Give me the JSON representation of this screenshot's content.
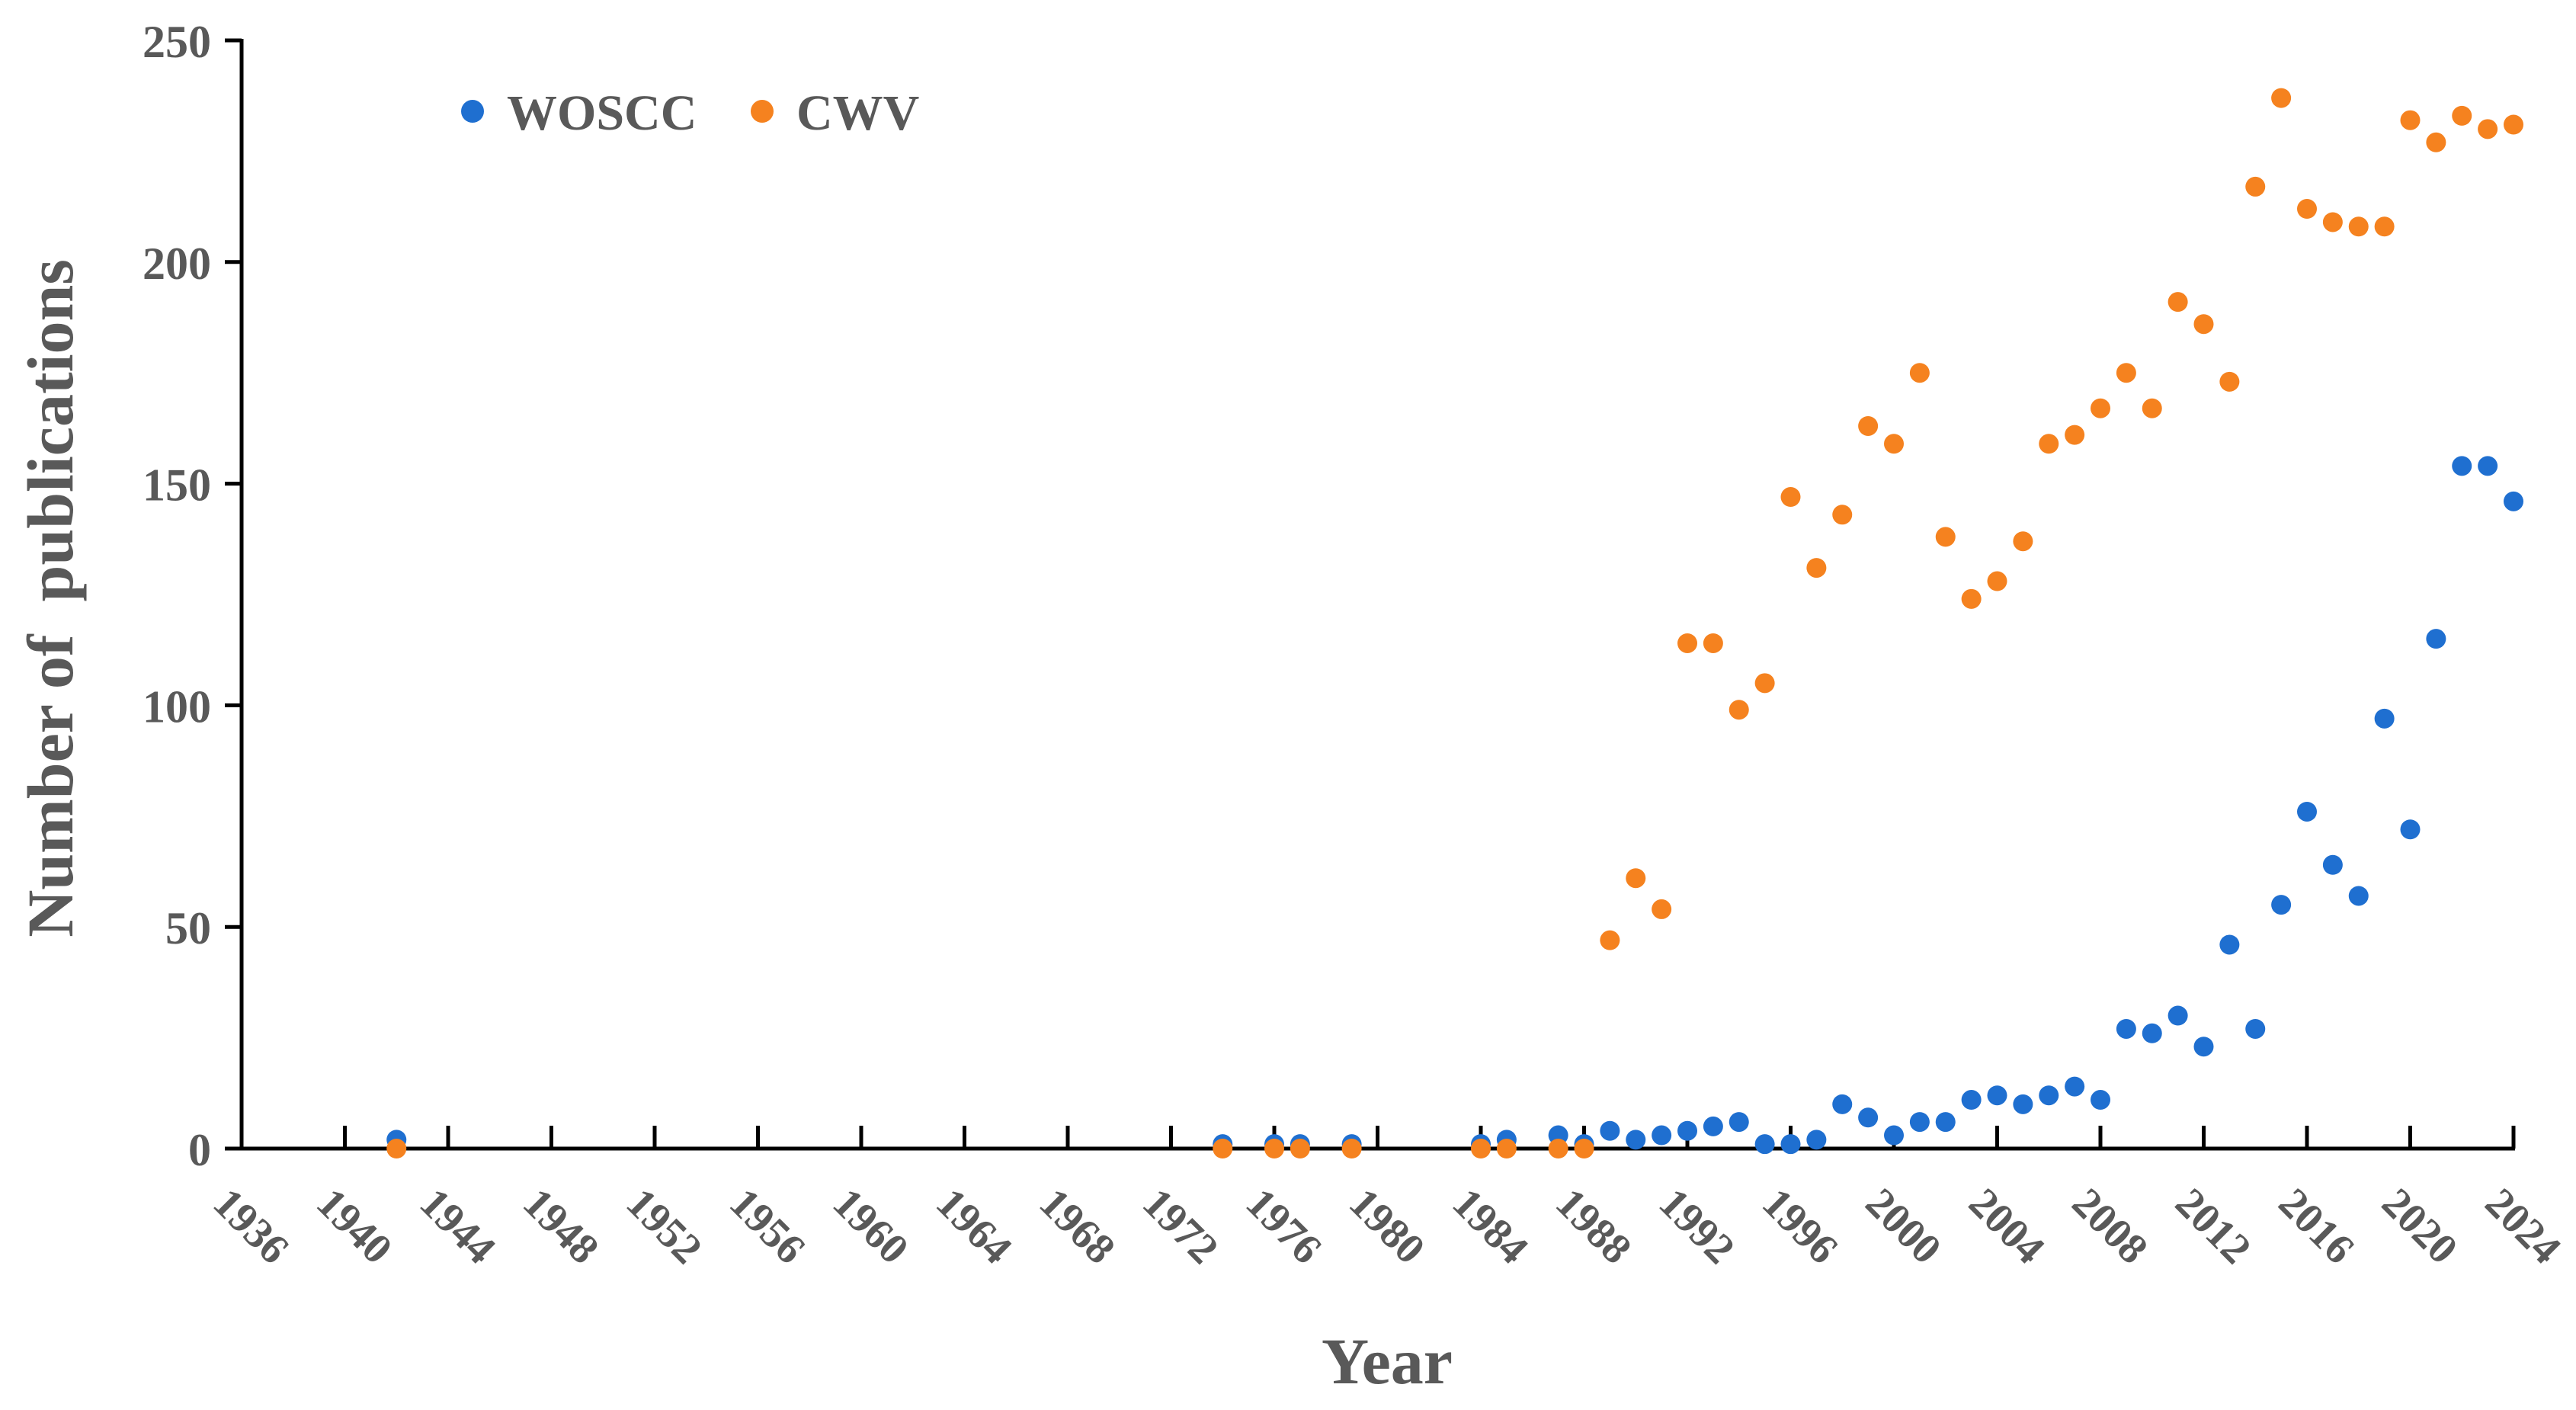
{
  "chart_data": {
    "type": "scatter",
    "title": "",
    "xlabel": "Year",
    "ylabel": "Number of  publications",
    "xlim": [
      1936,
      2024
    ],
    "ylim": [
      0,
      250
    ],
    "x_ticks": [
      1936,
      1940,
      1944,
      1948,
      1952,
      1956,
      1960,
      1964,
      1968,
      1972,
      1976,
      1980,
      1984,
      1988,
      1992,
      1996,
      2000,
      2004,
      2008,
      2012,
      2016,
      2020,
      2024
    ],
    "y_ticks": [
      0,
      50,
      100,
      150,
      200,
      250
    ],
    "legend_position": "top-left",
    "grid": false,
    "series": [
      {
        "name": "WOSCC",
        "color": "#1f6fd0",
        "points": [
          [
            1942,
            2
          ],
          [
            1974,
            1
          ],
          [
            1976,
            1
          ],
          [
            1977,
            1
          ],
          [
            1979,
            1
          ],
          [
            1984,
            1
          ],
          [
            1985,
            2
          ],
          [
            1987,
            3
          ],
          [
            1988,
            1
          ],
          [
            1989,
            4
          ],
          [
            1990,
            2
          ],
          [
            1991,
            3
          ],
          [
            1992,
            4
          ],
          [
            1993,
            5
          ],
          [
            1994,
            6
          ],
          [
            1995,
            1
          ],
          [
            1996,
            1
          ],
          [
            1997,
            2
          ],
          [
            1998,
            10
          ],
          [
            1999,
            7
          ],
          [
            2000,
            3
          ],
          [
            2001,
            6
          ],
          [
            2002,
            6
          ],
          [
            2003,
            11
          ],
          [
            2004,
            12
          ],
          [
            2005,
            10
          ],
          [
            2006,
            12
          ],
          [
            2007,
            14
          ],
          [
            2008,
            11
          ],
          [
            2009,
            27
          ],
          [
            2010,
            26
          ],
          [
            2011,
            30
          ],
          [
            2012,
            23
          ],
          [
            2013,
            46
          ],
          [
            2014,
            27
          ],
          [
            2015,
            55
          ],
          [
            2016,
            76
          ],
          [
            2017,
            64
          ],
          [
            2018,
            57
          ],
          [
            2019,
            97
          ],
          [
            2020,
            72
          ],
          [
            2021,
            115
          ],
          [
            2022,
            154
          ],
          [
            2023,
            154
          ],
          [
            2024,
            146
          ]
        ]
      },
      {
        "name": "CWV",
        "color": "#f5821f",
        "points": [
          [
            1942,
            0
          ],
          [
            1974,
            0
          ],
          [
            1976,
            0
          ],
          [
            1977,
            0
          ],
          [
            1979,
            0
          ],
          [
            1984,
            0
          ],
          [
            1985,
            0
          ],
          [
            1987,
            0
          ],
          [
            1988,
            0
          ],
          [
            1989,
            47
          ],
          [
            1990,
            61
          ],
          [
            1991,
            54
          ],
          [
            1992,
            114
          ],
          [
            1993,
            114
          ],
          [
            1994,
            99
          ],
          [
            1995,
            105
          ],
          [
            1996,
            147
          ],
          [
            1997,
            131
          ],
          [
            1998,
            143
          ],
          [
            1999,
            163
          ],
          [
            2000,
            159
          ],
          [
            2001,
            175
          ],
          [
            2002,
            138
          ],
          [
            2003,
            124
          ],
          [
            2004,
            128
          ],
          [
            2005,
            137
          ],
          [
            2006,
            159
          ],
          [
            2007,
            161
          ],
          [
            2008,
            167
          ],
          [
            2009,
            175
          ],
          [
            2010,
            167
          ],
          [
            2011,
            191
          ],
          [
            2012,
            186
          ],
          [
            2013,
            173
          ],
          [
            2014,
            217
          ],
          [
            2015,
            237
          ],
          [
            2016,
            212
          ],
          [
            2017,
            209
          ],
          [
            2018,
            208
          ],
          [
            2019,
            208
          ],
          [
            2020,
            232
          ],
          [
            2021,
            227
          ],
          [
            2022,
            233
          ],
          [
            2023,
            230
          ],
          [
            2024,
            231
          ]
        ]
      }
    ]
  }
}
